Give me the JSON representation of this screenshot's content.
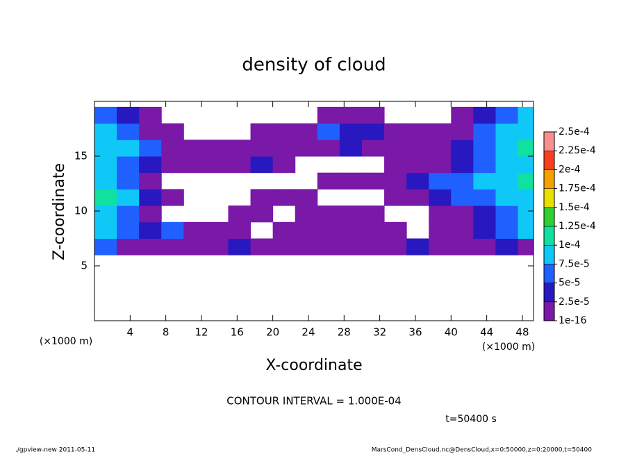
{
  "chart_data": {
    "type": "contour",
    "title": "density of cloud",
    "x_label": "X-coordinate",
    "y_label": "Z-coordinate",
    "x_unit_left": "(×1000 m)",
    "x_unit_right": "(×1000 m)",
    "annotation": "CONTOUR INTERVAL = 1.000E-04",
    "time_label": "t=50400 s",
    "footer_left": "./gpview-new   2011-05-11",
    "footer_right": "MarsCond_DensCloud.nc@DensCloud,x=0:50000,z=0:20000,t=50400",
    "xlim": [
      0,
      49.25
    ],
    "ylim": [
      0,
      20
    ],
    "xticks": [
      4,
      8,
      12,
      16,
      20,
      24,
      28,
      32,
      36,
      40,
      44,
      48
    ],
    "yticks": [
      5,
      10,
      15
    ],
    "colorbar": {
      "levels": [
        {
          "value": 1e-16,
          "label": "1e-16"
        },
        {
          "value": 2.5e-05,
          "label": "2.5e-5"
        },
        {
          "value": 5e-05,
          "label": "5e-5"
        },
        {
          "value": 7.5e-05,
          "label": "7.5e-5"
        },
        {
          "value": 0.0001,
          "label": "1e-4"
        },
        {
          "value": 0.000125,
          "label": "1.25e-4"
        },
        {
          "value": 0.00015,
          "label": "1.5e-4"
        },
        {
          "value": 0.000175,
          "label": "1.75e-4"
        },
        {
          "value": 0.0002,
          "label": "2e-4"
        },
        {
          "value": 0.000225,
          "label": "2.25e-4"
        },
        {
          "value": 0.00025,
          "label": "2.5e-4"
        }
      ],
      "colors": [
        "#7a18a8",
        "#2818c0",
        "#2060ff",
        "#10c8f8",
        "#10e0a0",
        "#30d030",
        "#e8e000",
        "#f8a000",
        "#f84020",
        "#f89090"
      ]
    },
    "field": {
      "x": [
        1.25,
        3.75,
        6.25,
        8.75,
        11.25,
        13.75,
        16.25,
        18.75,
        21.25,
        23.75,
        26.25,
        28.75,
        31.25,
        33.75,
        36.25,
        38.75,
        41.25,
        43.75,
        46.25,
        48.75
      ],
      "z": [
        6.75,
        8.25,
        9.75,
        11.25,
        12.75,
        14.25,
        15.75,
        17.25,
        18.75
      ],
      "values": [
        [
          6e-05,
          1e-05,
          1e-05,
          1e-05,
          1e-05,
          1e-05,
          3e-05,
          1e-05,
          1e-05,
          1e-05,
          1e-05,
          1e-05,
          1e-05,
          1e-05,
          3e-05,
          1e-05,
          1e-05,
          1e-05,
          3e-05,
          1e-05
        ],
        [
          9e-05,
          6e-05,
          3e-05,
          6e-05,
          1e-05,
          1e-05,
          1e-05,
          null,
          1e-05,
          1e-05,
          1e-05,
          1e-05,
          1e-05,
          1e-05,
          null,
          1e-05,
          1e-05,
          3e-05,
          6e-05,
          9e-05
        ],
        [
          9e-05,
          6e-05,
          1e-05,
          null,
          null,
          null,
          1e-05,
          1e-05,
          null,
          1e-05,
          1e-05,
          1e-05,
          1e-05,
          null,
          null,
          1e-05,
          1e-05,
          3e-05,
          6e-05,
          9e-05
        ],
        [
          0.00011,
          9e-05,
          3e-05,
          1e-05,
          null,
          null,
          null,
          1e-05,
          1e-05,
          1e-05,
          null,
          null,
          null,
          1e-05,
          1e-05,
          3e-05,
          6e-05,
          6e-05,
          9e-05,
          9e-05
        ],
        [
          9e-05,
          6e-05,
          1e-05,
          null,
          null,
          null,
          null,
          null,
          null,
          null,
          1e-05,
          1e-05,
          1e-05,
          1e-05,
          3e-05,
          6e-05,
          6e-05,
          9e-05,
          9e-05,
          0.00011
        ],
        [
          9e-05,
          6e-05,
          3e-05,
          1e-05,
          1e-05,
          1e-05,
          1e-05,
          3e-05,
          1e-05,
          null,
          null,
          null,
          null,
          1e-05,
          1e-05,
          1e-05,
          3e-05,
          6e-05,
          9e-05,
          9e-05
        ],
        [
          9e-05,
          9e-05,
          6e-05,
          1e-05,
          1e-05,
          1e-05,
          1e-05,
          1e-05,
          1e-05,
          1e-05,
          1e-05,
          3e-05,
          1e-05,
          1e-05,
          1e-05,
          1e-05,
          3e-05,
          6e-05,
          9e-05,
          0.00011
        ],
        [
          9e-05,
          6e-05,
          1e-05,
          1e-05,
          null,
          null,
          null,
          1e-05,
          1e-05,
          1e-05,
          6e-05,
          3e-05,
          3e-05,
          1e-05,
          1e-05,
          1e-05,
          1e-05,
          6e-05,
          9e-05,
          9e-05
        ],
        [
          6e-05,
          3e-05,
          1e-05,
          null,
          null,
          null,
          null,
          null,
          null,
          null,
          1e-05,
          1e-05,
          1e-05,
          null,
          null,
          null,
          1e-05,
          3e-05,
          6e-05,
          9e-05
        ]
      ]
    }
  }
}
